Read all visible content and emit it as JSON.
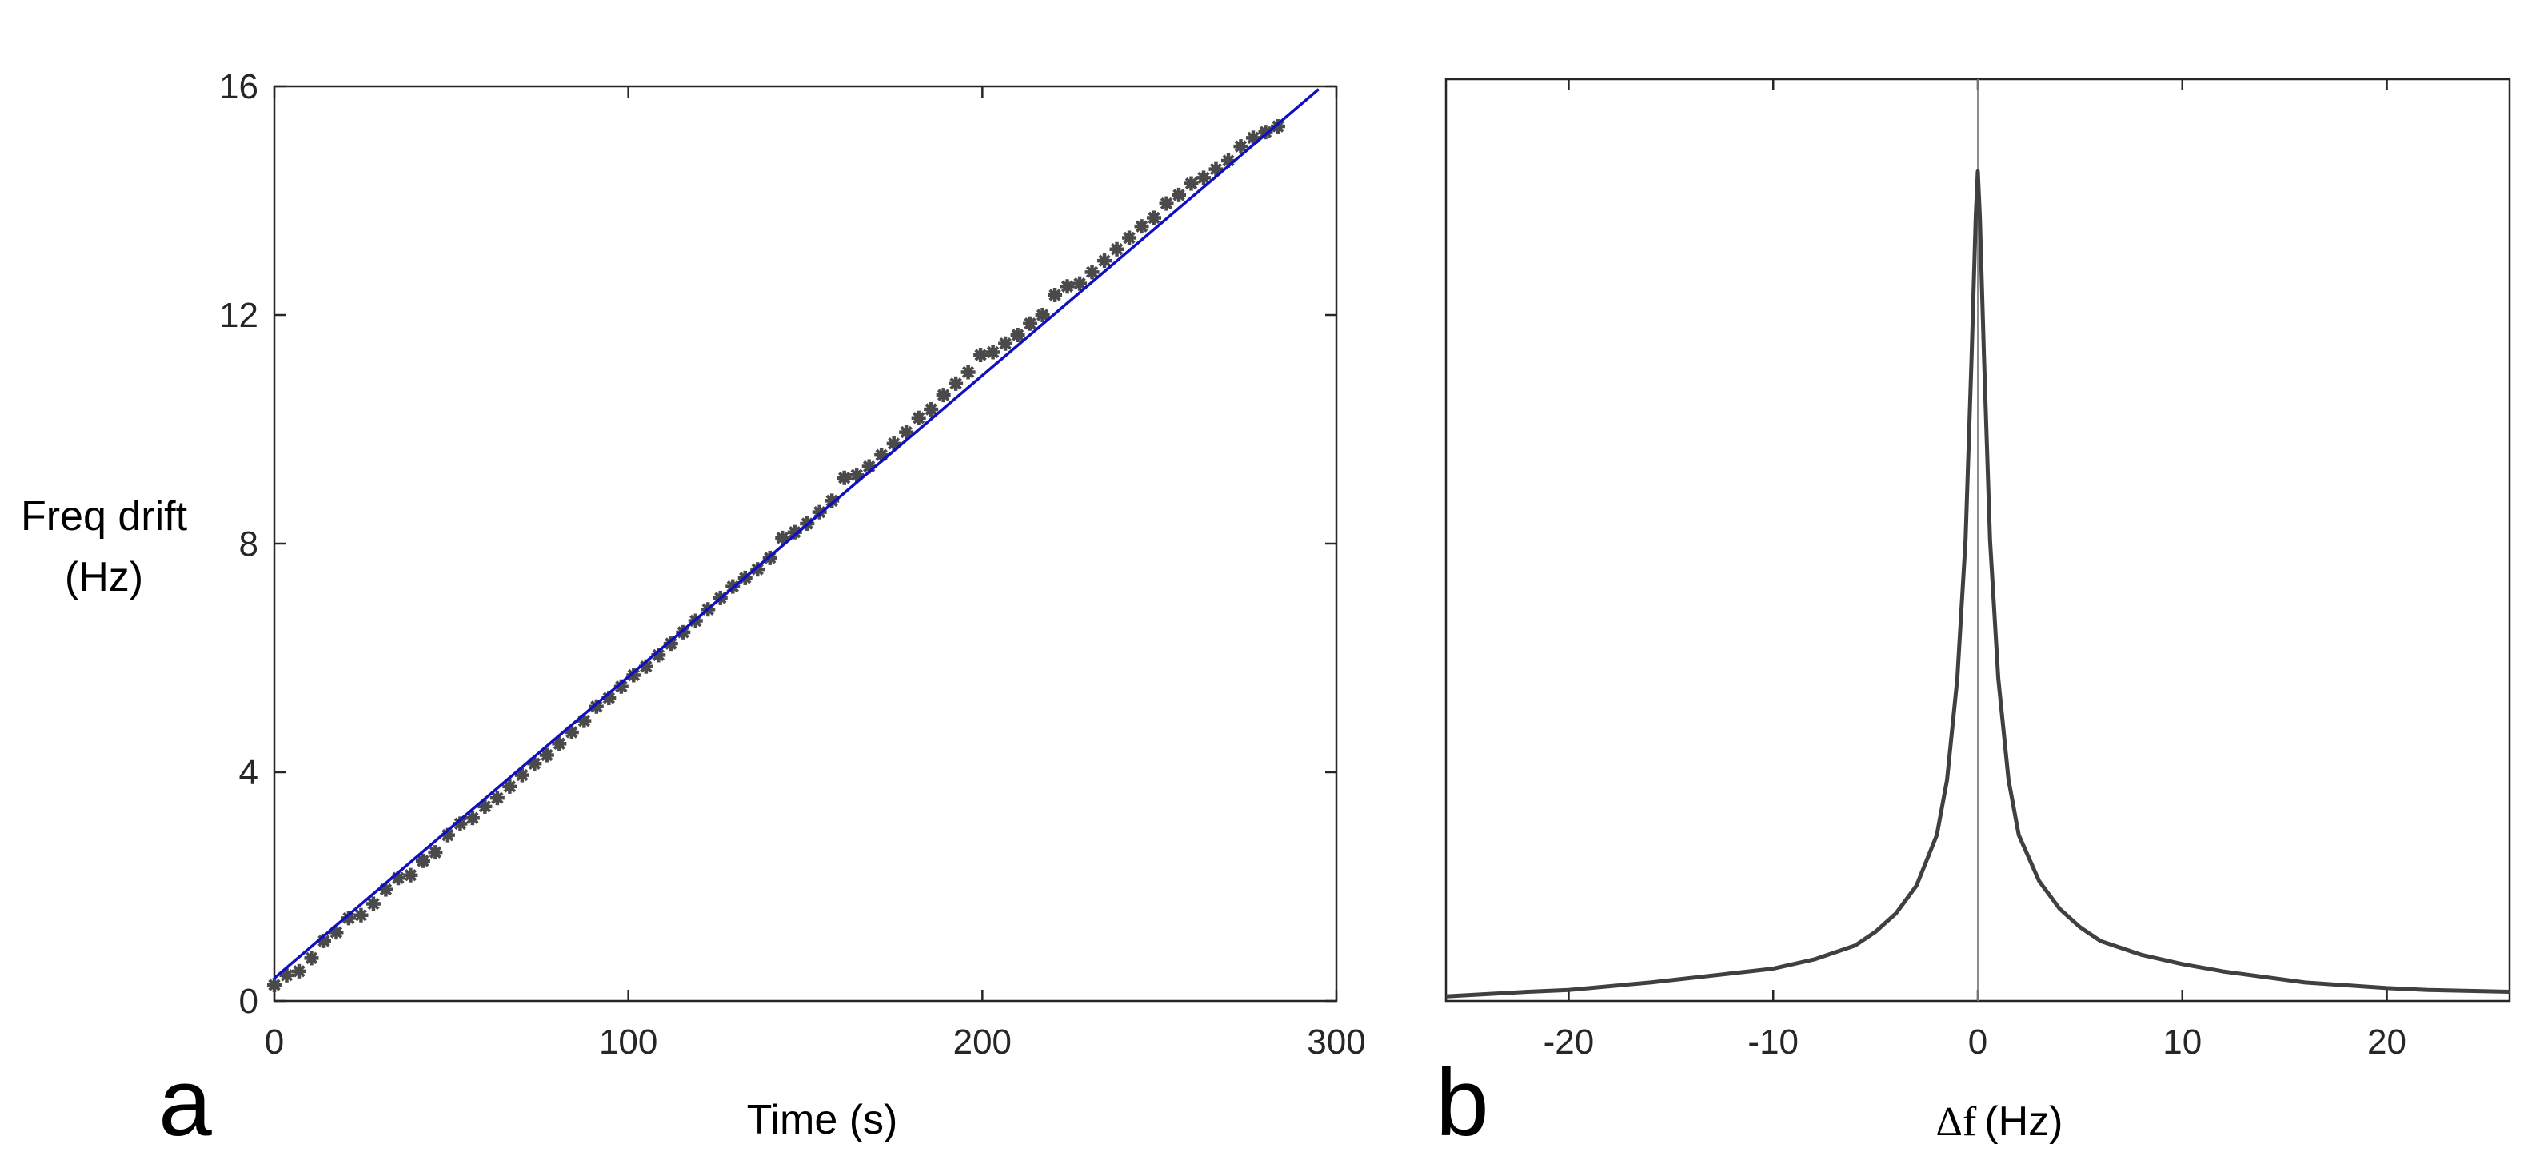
{
  "chart_data": [
    {
      "type": "scatter",
      "panel_label": "a",
      "xlabel": "Time (s)",
      "ylabel_lines": [
        "Freq drift",
        "(Hz)"
      ],
      "xlim": [
        0,
        300
      ],
      "ylim": [
        0,
        16
      ],
      "xticks": [
        0,
        100,
        200,
        300
      ],
      "yticks": [
        0,
        4,
        8,
        12,
        16
      ],
      "grid": false,
      "colors": {
        "markers": "#4a4a4a",
        "fit_line": "#1010c0"
      },
      "series": [
        {
          "marker": "asterisk",
          "points": [
            [
              0,
              0.28
            ],
            [
              3.5,
              0.45
            ],
            [
              7,
              0.52
            ],
            [
              10.5,
              0.75
            ],
            [
              14,
              1.05
            ],
            [
              17.5,
              1.2
            ],
            [
              21,
              1.45
            ],
            [
              24.5,
              1.5
            ],
            [
              28,
              1.7
            ],
            [
              31.5,
              1.95
            ],
            [
              35,
              2.15
            ],
            [
              38.5,
              2.2
            ],
            [
              42,
              2.45
            ],
            [
              45.5,
              2.6
            ],
            [
              49,
              2.9
            ],
            [
              52.5,
              3.1
            ],
            [
              56,
              3.2
            ],
            [
              59.5,
              3.4
            ],
            [
              63,
              3.55
            ],
            [
              66.5,
              3.75
            ],
            [
              70,
              3.95
            ],
            [
              73.5,
              4.15
            ],
            [
              77,
              4.3
            ],
            [
              80.5,
              4.5
            ],
            [
              84,
              4.7
            ],
            [
              87.5,
              4.9
            ],
            [
              91,
              5.15
            ],
            [
              94.5,
              5.3
            ],
            [
              98,
              5.5
            ],
            [
              101.5,
              5.7
            ],
            [
              105,
              5.85
            ],
            [
              108.5,
              6.05
            ],
            [
              112,
              6.25
            ],
            [
              115.5,
              6.45
            ],
            [
              119,
              6.65
            ],
            [
              122.5,
              6.85
            ],
            [
              126,
              7.05
            ],
            [
              129.5,
              7.25
            ],
            [
              133,
              7.4
            ],
            [
              136.5,
              7.55
            ],
            [
              140,
              7.75
            ],
            [
              143.5,
              8.1
            ],
            [
              147,
              8.2
            ],
            [
              150.5,
              8.35
            ],
            [
              154,
              8.55
            ],
            [
              157.5,
              8.75
            ],
            [
              161,
              9.15
            ],
            [
              164.5,
              9.2
            ],
            [
              168,
              9.35
            ],
            [
              171.5,
              9.55
            ],
            [
              175,
              9.75
            ],
            [
              178.5,
              9.95
            ],
            [
              182,
              10.2
            ],
            [
              185.5,
              10.35
            ],
            [
              189,
              10.6
            ],
            [
              192.5,
              10.8
            ],
            [
              196,
              11.0
            ],
            [
              199.5,
              11.3
            ],
            [
              203,
              11.35
            ],
            [
              206.5,
              11.5
            ],
            [
              210,
              11.65
            ],
            [
              213.5,
              11.85
            ],
            [
              217,
              12.0
            ],
            [
              220.5,
              12.35
            ],
            [
              224,
              12.5
            ],
            [
              227.5,
              12.55
            ],
            [
              231,
              12.75
            ],
            [
              234.5,
              12.95
            ],
            [
              238,
              13.15
            ],
            [
              241.5,
              13.35
            ],
            [
              245,
              13.55
            ],
            [
              248.5,
              13.7
            ],
            [
              252,
              13.95
            ],
            [
              255.5,
              14.1
            ],
            [
              259,
              14.3
            ],
            [
              262.5,
              14.4
            ],
            [
              266,
              14.55
            ],
            [
              269.5,
              14.7
            ],
            [
              273,
              14.95
            ],
            [
              276.5,
              15.1
            ],
            [
              280,
              15.2
            ],
            [
              283.5,
              15.3
            ]
          ]
        },
        {
          "type": "line",
          "points": [
            [
              0,
              0.4
            ],
            [
              295,
              15.95
            ]
          ]
        }
      ]
    },
    {
      "type": "line",
      "panel_label": "b",
      "xlabel_symbol": "Δf",
      "xlabel_unit": "(Hz)",
      "xlim": [
        -26,
        26
      ],
      "ylim": [
        0,
        1
      ],
      "xticks": [
        -20,
        -10,
        0,
        10,
        20
      ],
      "yticks": [],
      "grid": false,
      "reference_line_x": 0,
      "colors": {
        "curve": "#404040",
        "reference_line": "#808080"
      },
      "series": [
        {
          "points": [
            [
              -26,
              0.005
            ],
            [
              -22,
              0.01
            ],
            [
              -20,
              0.012
            ],
            [
              -16,
              0.02
            ],
            [
              -12,
              0.03
            ],
            [
              -10,
              0.035
            ],
            [
              -8,
              0.045
            ],
            [
              -6,
              0.06
            ],
            [
              -5,
              0.075
            ],
            [
              -4,
              0.095
            ],
            [
              -3,
              0.125
            ],
            [
              -2,
              0.18
            ],
            [
              -1.5,
              0.24
            ],
            [
              -1,
              0.35
            ],
            [
              -0.6,
              0.5
            ],
            [
              -0.3,
              0.7
            ],
            [
              -0.1,
              0.85
            ],
            [
              0,
              0.9
            ],
            [
              0.1,
              0.85
            ],
            [
              0.3,
              0.7
            ],
            [
              0.6,
              0.5
            ],
            [
              1,
              0.35
            ],
            [
              1.5,
              0.24
            ],
            [
              2,
              0.18
            ],
            [
              3,
              0.13
            ],
            [
              4,
              0.1
            ],
            [
              5,
              0.08
            ],
            [
              6,
              0.065
            ],
            [
              8,
              0.05
            ],
            [
              10,
              0.04
            ],
            [
              12,
              0.032
            ],
            [
              16,
              0.02
            ],
            [
              20,
              0.014
            ],
            [
              22,
              0.012
            ],
            [
              26,
              0.01
            ]
          ]
        }
      ]
    }
  ]
}
